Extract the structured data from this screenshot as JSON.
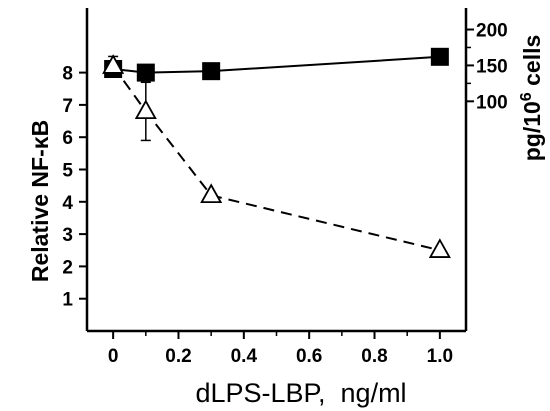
{
  "chart_data": {
    "type": "line",
    "xlabel": "dLPS-LBP,  ng/ml",
    "ylabel_left": "Relative NF-κB",
    "ylabel_right_base": "pg/10",
    "ylabel_right_exponent": "6",
    "ylabel_right_suffix": " cells",
    "xlim": [
      -0.08,
      1.08
    ],
    "x_ticks": [
      0,
      0.2,
      0.4,
      0.6,
      0.8,
      1.0
    ],
    "x_tick_labels": [
      "0",
      "0.2",
      "0.4",
      "0.6",
      "0.8",
      "1.0"
    ],
    "ylim_left": [
      0,
      10
    ],
    "y_left_ticks": [
      1,
      2,
      3,
      4,
      5,
      6,
      7,
      8
    ],
    "y_left_tick_labels": [
      "1",
      "2",
      "3",
      "4",
      "5",
      "6",
      "7",
      "8"
    ],
    "ylim_right": [
      -220,
      230
    ],
    "y_right_ticks": [
      100,
      150,
      200
    ],
    "y_right_tick_labels": [
      "100",
      "150",
      "200"
    ],
    "grid": false,
    "series": [
      {
        "axis": "right",
        "marker": "filled-square",
        "line_style": "solid",
        "x": [
          0,
          0.1,
          0.3,
          1.0
        ],
        "y": [
          145,
          140,
          142,
          162
        ]
      },
      {
        "axis": "left",
        "marker": "open-triangle",
        "line_style": "dashed",
        "x": [
          0,
          0.1,
          0.3,
          1.0
        ],
        "y": [
          8.2,
          6.8,
          4.2,
          2.5
        ],
        "error": [
          0.3,
          0.9,
          0,
          0
        ]
      }
    ]
  }
}
